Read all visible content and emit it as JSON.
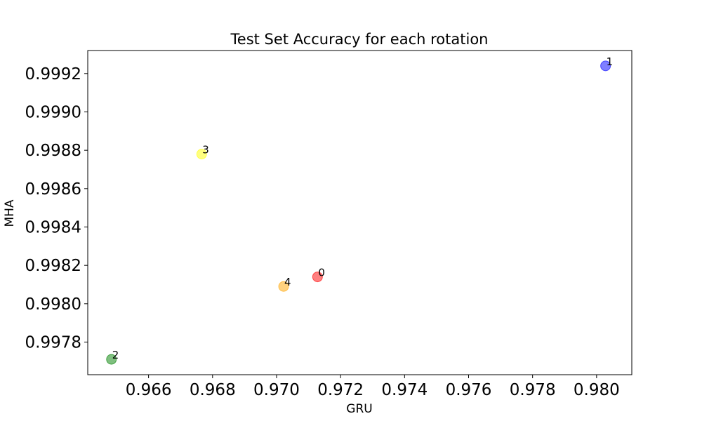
{
  "chart_data": {
    "type": "scatter",
    "title": "Test Set Accuracy for each rotation",
    "xlabel": "GRU",
    "ylabel": "MHA",
    "xlim": [
      0.9641,
      0.9811
    ],
    "ylim": [
      0.99763,
      0.99932
    ],
    "xticks": [
      {
        "value": 0.966,
        "label": "0.966"
      },
      {
        "value": 0.968,
        "label": "0.968"
      },
      {
        "value": 0.97,
        "label": "0.970"
      },
      {
        "value": 0.972,
        "label": "0.972"
      },
      {
        "value": 0.974,
        "label": "0.974"
      },
      {
        "value": 0.976,
        "label": "0.976"
      },
      {
        "value": 0.978,
        "label": "0.978"
      },
      {
        "value": 0.98,
        "label": "0.980"
      }
    ],
    "yticks": [
      {
        "value": 0.9978,
        "label": "0.9978"
      },
      {
        "value": 0.998,
        "label": "0.9980"
      },
      {
        "value": 0.9982,
        "label": "0.9982"
      },
      {
        "value": 0.9984,
        "label": "0.9984"
      },
      {
        "value": 0.9986,
        "label": "0.9986"
      },
      {
        "value": 0.9988,
        "label": "0.9988"
      },
      {
        "value": 0.999,
        "label": "0.9990"
      },
      {
        "value": 0.9992,
        "label": "0.9992"
      }
    ],
    "grid": false,
    "points": [
      {
        "label": "0",
        "x": 0.97128,
        "y": 0.99814,
        "color": "#ff0000"
      },
      {
        "label": "1",
        "x": 0.98028,
        "y": 0.99924,
        "color": "#0000ff"
      },
      {
        "label": "2",
        "x": 0.96484,
        "y": 0.99771,
        "color": "#008000"
      },
      {
        "label": "3",
        "x": 0.96766,
        "y": 0.99878,
        "color": "#ffff00"
      },
      {
        "label": "4",
        "x": 0.97022,
        "y": 0.99809,
        "color": "#ffa500"
      }
    ]
  }
}
